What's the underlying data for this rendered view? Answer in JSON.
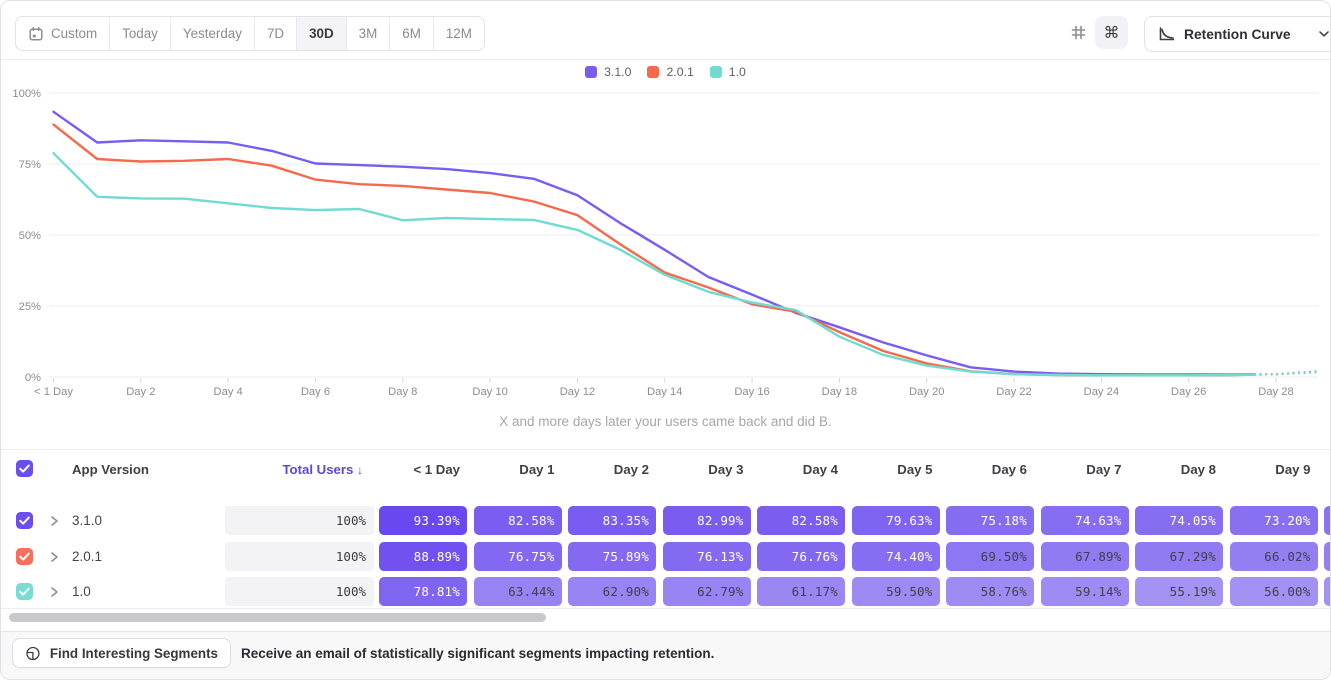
{
  "toolbar": {
    "ranges": [
      "Custom",
      "Today",
      "Yesterday",
      "7D",
      "30D",
      "3M",
      "6M",
      "12M"
    ],
    "active_range": "30D",
    "view_toggle": {
      "grid_glyph": "#",
      "percent_glyph": "⌘",
      "selected": "percent"
    },
    "chart_type_label": "Retention Curve"
  },
  "chart_data": {
    "type": "line",
    "title": "",
    "caption": "X and more days later your users came back and did B.",
    "xlabel": "",
    "ylabel": "",
    "ylim": [
      0,
      100
    ],
    "y_tick_labels": [
      "0%",
      "25%",
      "50%",
      "75%",
      "100%"
    ],
    "x_tick_days": [
      0,
      2,
      4,
      6,
      8,
      10,
      12,
      14,
      16,
      18,
      20,
      22,
      24,
      26,
      28
    ],
    "x_tick_labels": [
      "< 1 Day",
      "Day 2",
      "Day 4",
      "Day 6",
      "Day 8",
      "Day 10",
      "Day 12",
      "Day 14",
      "Day 16",
      "Day 18",
      "Day 20",
      "Day 22",
      "Day 24",
      "Day 26",
      "Day 28"
    ],
    "legend_position": "top-center",
    "grid": true,
    "series": [
      {
        "name": "3.1.0",
        "color": "#7b5cf1",
        "values": [
          93.39,
          82.58,
          83.35,
          82.99,
          82.58,
          79.63,
          75.18,
          74.63,
          74.05,
          73.2,
          71.8,
          69.8,
          64.0,
          54.0,
          44.8,
          35.2,
          29.0,
          22.6,
          17.5,
          12.2,
          7.6,
          3.4,
          1.9,
          1.2,
          1.0,
          0.9,
          0.9,
          0.9,
          1.0
        ],
        "projection_end_value": 2.0
      },
      {
        "name": "2.0.1",
        "color": "#f5694c",
        "values": [
          88.89,
          76.75,
          75.89,
          76.13,
          76.76,
          74.4,
          69.5,
          67.89,
          67.29,
          66.02,
          64.8,
          61.8,
          57.0,
          46.5,
          36.8,
          31.5,
          25.6,
          23.0,
          15.8,
          9.2,
          4.8,
          2.0,
          1.0,
          0.7,
          0.6,
          0.6,
          0.6,
          0.7,
          0.9
        ],
        "projection_end_value": 1.75
      },
      {
        "name": "1.0",
        "color": "#70dbd0",
        "values": [
          78.81,
          63.44,
          62.9,
          62.79,
          61.17,
          59.5,
          58.76,
          59.14,
          55.19,
          56.0,
          55.6,
          55.3,
          51.8,
          44.7,
          36.0,
          30.0,
          26.2,
          23.6,
          14.2,
          7.8,
          4.0,
          1.9,
          1.0,
          0.7,
          0.6,
          0.6,
          0.6,
          0.7,
          0.9
        ],
        "projection_end_value": 1.8
      }
    ]
  },
  "table": {
    "header": {
      "select_all_checked": true,
      "app_version_label": "App Version",
      "total_users_label": "Total Users",
      "sort_arrow": "↓",
      "day_columns": [
        "< 1 Day",
        "Day 1",
        "Day 2",
        "Day 3",
        "Day 4",
        "Day 5",
        "Day 6",
        "Day 7",
        "Day 8",
        "Day 9"
      ]
    },
    "rows": [
      {
        "version": "3.1.0",
        "checkbox_color": "#6b4df0",
        "total": "100%",
        "cells": [
          "93.39%",
          "82.58%",
          "83.35%",
          "82.99%",
          "82.58%",
          "79.63%",
          "75.18%",
          "74.63%",
          "74.05%",
          "73.20%"
        ]
      },
      {
        "version": "2.0.1",
        "checkbox_color": "#f4705c",
        "total": "100%",
        "cells": [
          "88.89%",
          "76.75%",
          "75.89%",
          "76.13%",
          "76.76%",
          "74.40%",
          "69.50%",
          "67.89%",
          "67.29%",
          "66.02%"
        ]
      },
      {
        "version": "1.0",
        "checkbox_color": "#77dcd2",
        "total": "100%",
        "cells": [
          "78.81%",
          "63.44%",
          "62.90%",
          "62.79%",
          "61.17%",
          "59.50%",
          "58.76%",
          "59.14%",
          "55.19%",
          "56.00%"
        ]
      }
    ]
  },
  "footer": {
    "button_label": "Find Interesting Segments",
    "description": "Receive an email of statistically significant segments impacting retention."
  }
}
